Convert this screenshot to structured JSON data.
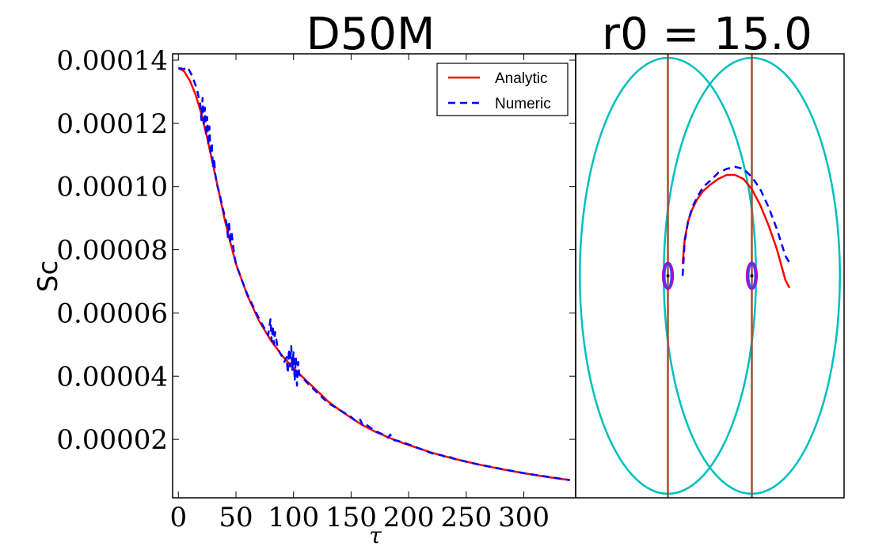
{
  "chart_data": [
    {
      "type": "line",
      "title": "D50M",
      "xlabel": "τ",
      "ylabel": "Sc",
      "xlim": [
        -5,
        345
      ],
      "ylim": [
        1.5e-06,
        0.000142
      ],
      "xticks": [
        0,
        50,
        100,
        150,
        200,
        250,
        300
      ],
      "xtick_labels": [
        "0",
        "50",
        "100",
        "150",
        "200",
        "250",
        "300"
      ],
      "yticks": [
        2e-05,
        4e-05,
        6e-05,
        8e-05,
        0.0001,
        0.00012,
        0.00014
      ],
      "ytick_labels": [
        "0.00002",
        "0.00004",
        "0.00006",
        "0.00008",
        "0.00010",
        "0.00012",
        "0.00014"
      ],
      "legend_position": "top-right",
      "series": [
        {
          "name": "Analytic",
          "color": "#ff0000",
          "style": "solid",
          "x": [
            0,
            5,
            10,
            15,
            20,
            25,
            30,
            35,
            40,
            45,
            50,
            60,
            70,
            80,
            90,
            100,
            110,
            120,
            130,
            140,
            150,
            160,
            170,
            180,
            190,
            200,
            220,
            240,
            260,
            280,
            300,
            320,
            340
          ],
          "y": [
            0.0001375,
            0.0001365,
            0.0001335,
            0.000129,
            0.000123,
            0.0001155,
            0.000107,
            9.85e-05,
            9e-05,
            8.25e-05,
            7.55e-05,
            6.55e-05,
            5.75e-05,
            5.15e-05,
            4.65e-05,
            4.25e-05,
            3.9e-05,
            3.55e-05,
            3.2e-05,
            2.93e-05,
            2.68e-05,
            2.45e-05,
            2.26e-05,
            2.1e-05,
            1.95e-05,
            1.82e-05,
            1.58e-05,
            1.38e-05,
            1.21e-05,
            1.06e-05,
            9.3e-06,
            8.1e-06,
            7.1e-06
          ]
        },
        {
          "name": "Numeric",
          "color": "#0000ff",
          "style": "dashed",
          "x": [
            0,
            5,
            8,
            12,
            16,
            19,
            20,
            21,
            22,
            23,
            24,
            25,
            26,
            27,
            28,
            29,
            30,
            31,
            32,
            34,
            36,
            38,
            40,
            42,
            43,
            44,
            45,
            46,
            48,
            50,
            55,
            60,
            65,
            70,
            75,
            78,
            80,
            81,
            82,
            83,
            84,
            86,
            88,
            90,
            92,
            94,
            95,
            96,
            97,
            98,
            99,
            100,
            101,
            102,
            103,
            104,
            105,
            108,
            112,
            120,
            130,
            140,
            150,
            155,
            158,
            160,
            162,
            170,
            180,
            182,
            184,
            186,
            190,
            200,
            220,
            230,
            232,
            235,
            240,
            260,
            280,
            300,
            320,
            340
          ],
          "y": [
            0.0001375,
            0.0001372,
            0.0001378,
            0.000135,
            0.000131,
            0.000126,
            0.000121,
            0.000128,
            0.000119,
            0.000125,
            0.000116,
            0.000122,
            0.000113,
            0.000119,
            0.00011,
            0.000114,
            0.000106,
            0.000109,
            0.000104,
            0.0001,
            9.75e-05,
            9.4e-05,
            9.1e-05,
            8.8e-05,
            8.4e-05,
            8.9e-05,
            8.2e-05,
            8.6e-05,
            8e-05,
            7.55e-05,
            7.05e-05,
            6.58e-05,
            6.2e-05,
            5.82e-05,
            5.5e-05,
            5.3e-05,
            5.8e-05,
            5.1e-05,
            5.6e-05,
            5e-05,
            5.4e-05,
            4.95e-05,
            4.75e-05,
            4.62e-05,
            4.45e-05,
            4.6e-05,
            4.1e-05,
            4.85e-05,
            4.3e-05,
            4.95e-05,
            4.2e-05,
            4.75e-05,
            3.85e-05,
            4.6e-05,
            3.7e-05,
            4.45e-05,
            4.05e-05,
            3.95e-05,
            3.78e-05,
            3.5e-05,
            3.15e-05,
            2.93e-05,
            2.71e-05,
            2.55e-05,
            2.62e-05,
            2.45e-05,
            2.5e-05,
            2.28e-05,
            2.12e-05,
            2.05e-05,
            2.15e-05,
            1.98e-05,
            1.96e-05,
            1.84e-05,
            1.56e-05,
            1.48e-05,
            1.42e-05,
            1.45e-05,
            1.38e-05,
            1.21e-05,
            1.07e-05,
            9.3e-06,
            8.2e-06,
            7.1e-06
          ]
        }
      ]
    },
    {
      "type": "line",
      "title": "r0 = 15.0",
      "xlim": [
        -1.6,
        1.6
      ],
      "ylim": [
        -1.1,
        1.1
      ],
      "series": [
        {
          "name": "cyan-ellipse-left",
          "color": "#00bfbf",
          "shape": "ellipse",
          "center": [
            -0.5,
            0
          ],
          "radii": [
            1.05,
            1.08
          ]
        },
        {
          "name": "cyan-ellipse-right",
          "color": "#00bfbf",
          "shape": "ellipse",
          "center": [
            0.5,
            0
          ],
          "radii": [
            1.05,
            1.08
          ]
        },
        {
          "name": "brown-line-left",
          "color": "#a0522d",
          "x": [
            -0.5,
            -0.5
          ],
          "y": [
            -1.1,
            1.1
          ]
        },
        {
          "name": "brown-line-right",
          "color": "#a0522d",
          "x": [
            0.5,
            0.5
          ],
          "y": [
            -1.1,
            1.1
          ]
        },
        {
          "name": "magenta-ellipse-left",
          "color": "#bf00bf",
          "shape": "ellipse",
          "center": [
            -0.5,
            0
          ],
          "radii": [
            0.06,
            0.065
          ]
        },
        {
          "name": "magenta-ellipse-right",
          "color": "#bf00bf",
          "shape": "ellipse",
          "center": [
            0.5,
            0
          ],
          "radii": [
            0.06,
            0.065
          ]
        },
        {
          "name": "blue-ellipse-left",
          "color": "#4040ff",
          "shape": "ellipse",
          "center": [
            -0.5,
            0
          ],
          "radii": [
            0.04,
            0.06
          ]
        },
        {
          "name": "blue-ellipse-right",
          "color": "#4040ff",
          "shape": "ellipse",
          "center": [
            0.5,
            0
          ],
          "radii": [
            0.04,
            0.06
          ]
        },
        {
          "name": "Analytic",
          "color": "#ff0000",
          "style": "solid",
          "x": [
            -0.325,
            -0.3,
            -0.26,
            -0.21,
            -0.15,
            -0.08,
            0.0,
            0.1,
            0.2,
            0.3,
            0.4,
            0.5,
            0.6,
            0.7,
            0.8,
            0.9,
            0.95
          ],
          "y": [
            0.06,
            0.18,
            0.27,
            0.33,
            0.38,
            0.42,
            0.45,
            0.48,
            0.5,
            0.5,
            0.48,
            0.43,
            0.35,
            0.25,
            0.13,
            -0.02,
            -0.06
          ]
        },
        {
          "name": "Numeric",
          "color": "#0000ff",
          "style": "dashed",
          "x": [
            -0.325,
            -0.3,
            -0.26,
            -0.21,
            -0.15,
            -0.08,
            0.0,
            0.1,
            0.2,
            0.3,
            0.4,
            0.5,
            0.6,
            0.7,
            0.8,
            0.9,
            0.97
          ],
          "y": [
            0.0,
            0.17,
            0.27,
            0.34,
            0.39,
            0.44,
            0.47,
            0.51,
            0.53,
            0.54,
            0.53,
            0.49,
            0.43,
            0.34,
            0.23,
            0.1,
            0.05
          ]
        }
      ]
    }
  ]
}
